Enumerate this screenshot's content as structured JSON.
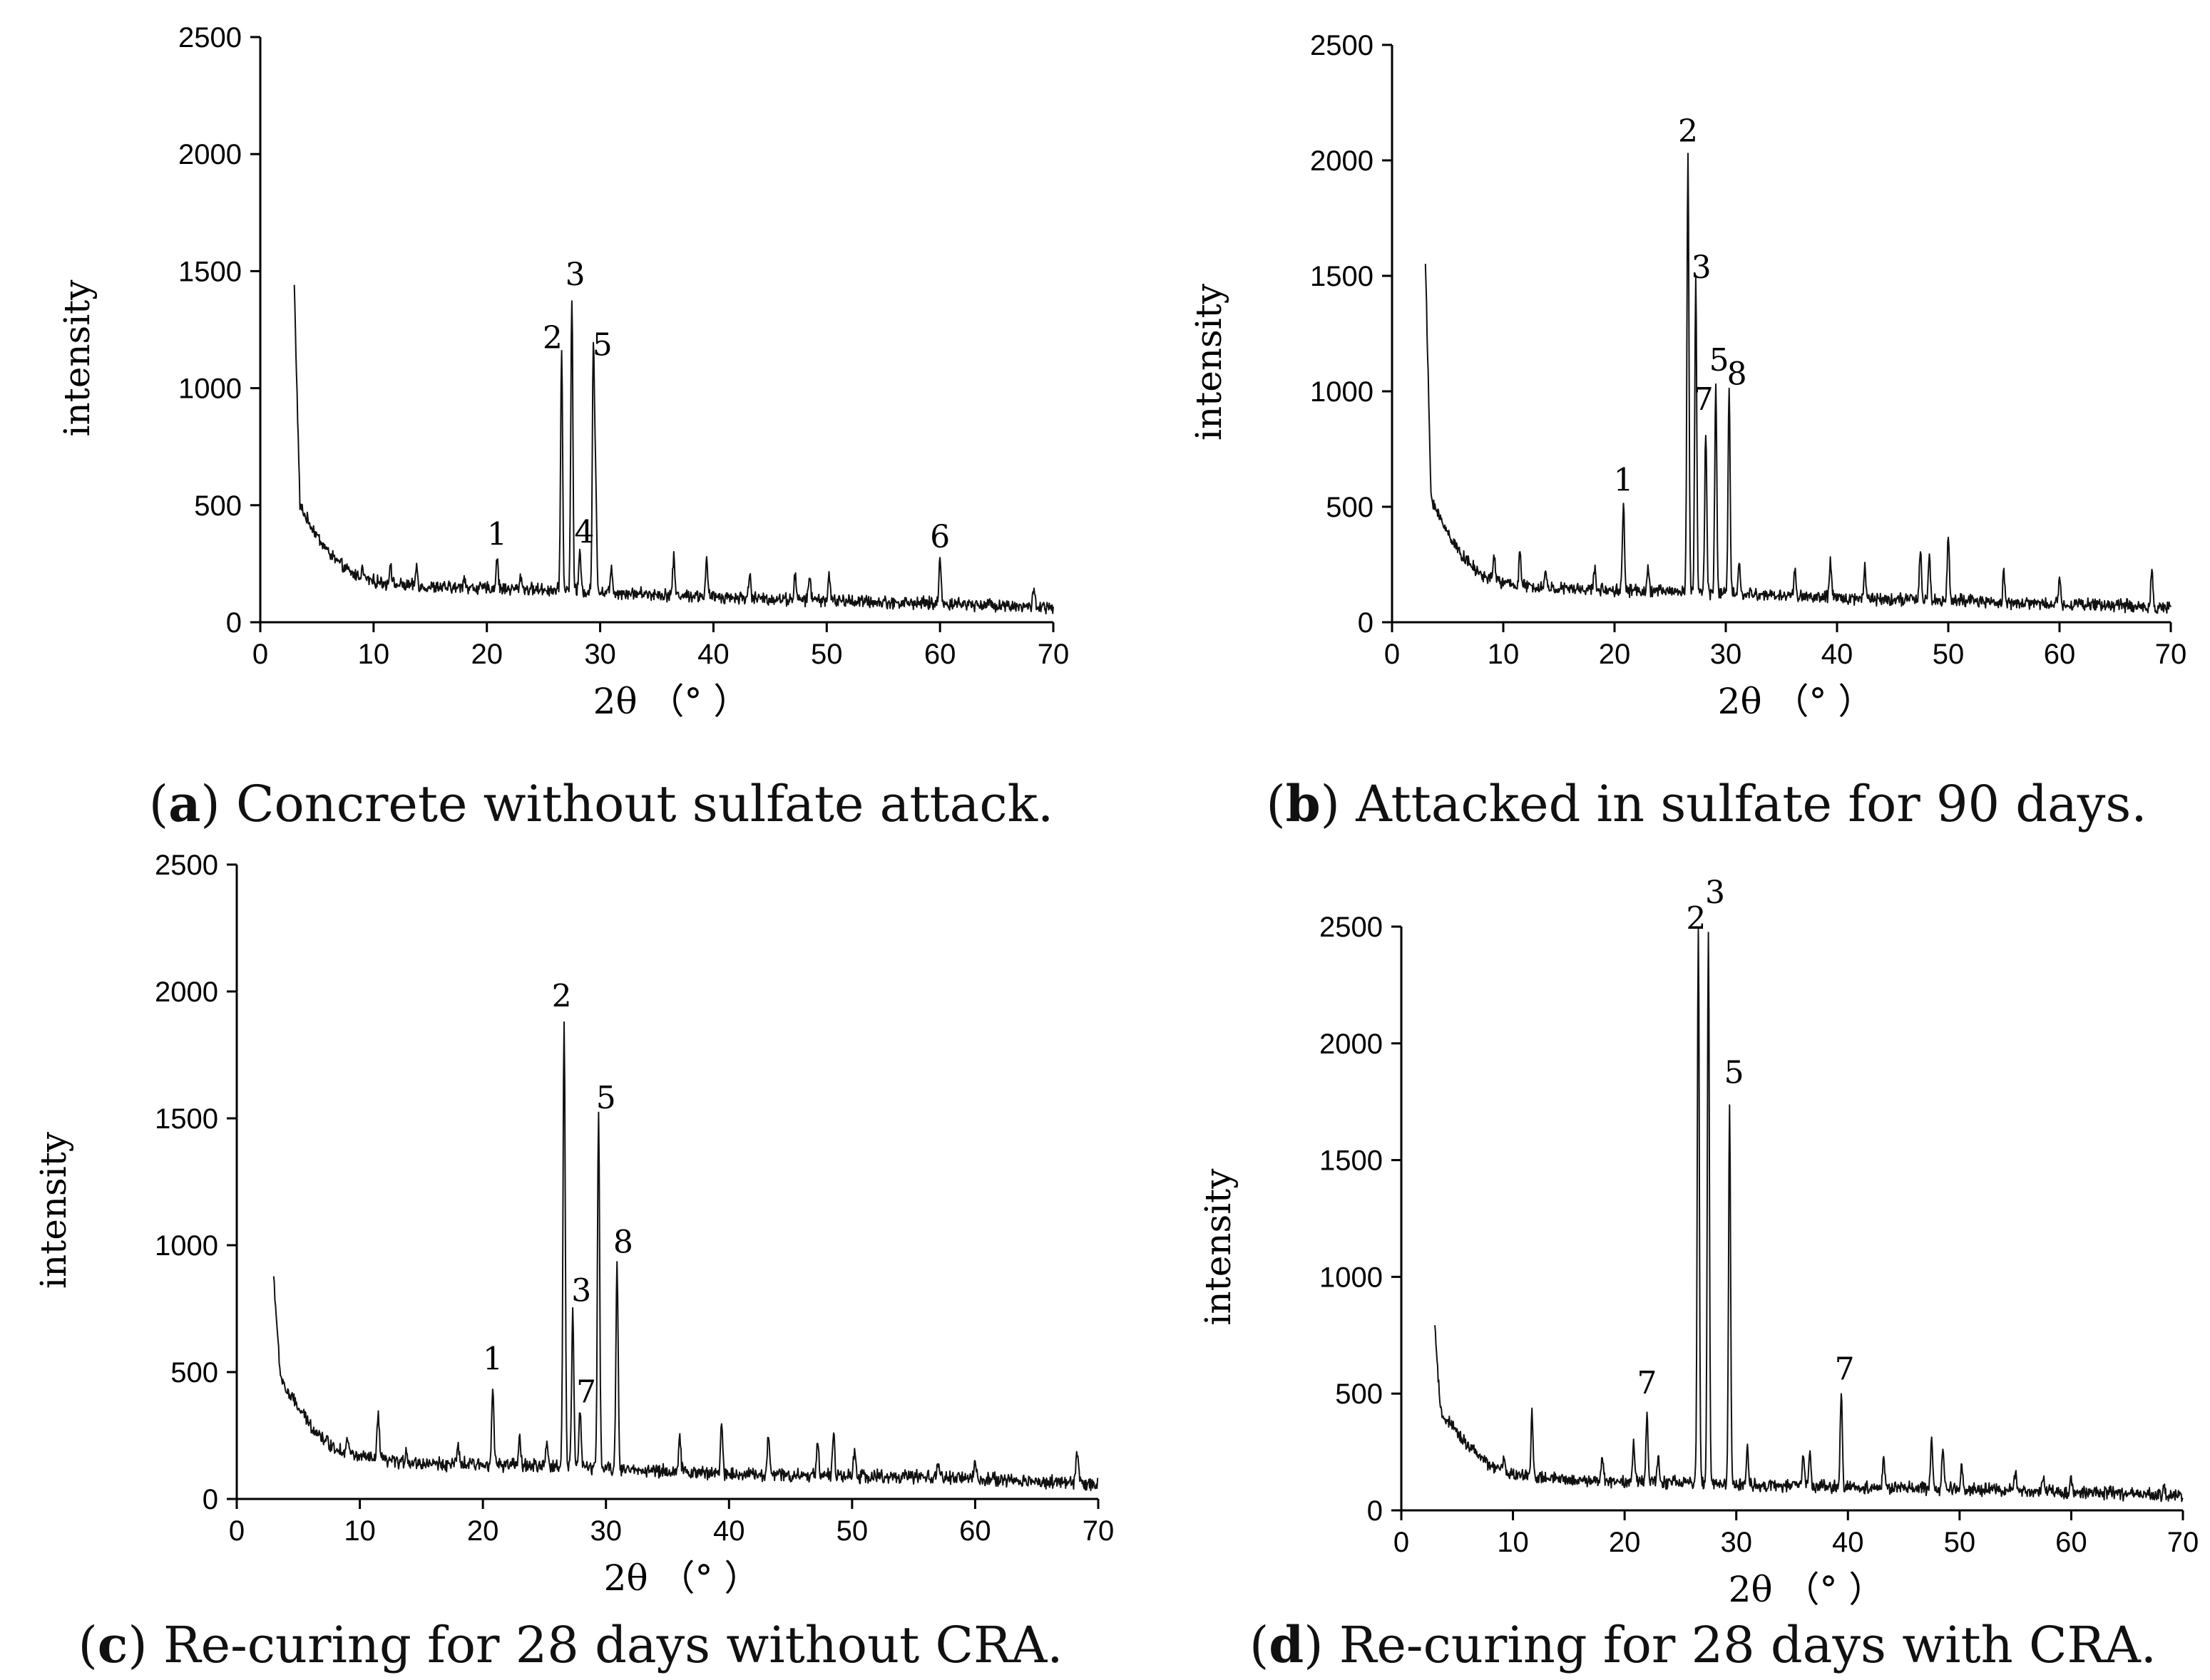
{
  "chart_data": [
    {
      "id": "a",
      "type": "line",
      "caption_letter": "a",
      "caption_text": "Concrete without sulfate attack.",
      "xlabel": "2θ （° ）",
      "ylabel": "intensity",
      "xlim": [
        0,
        70
      ],
      "ylim": [
        0,
        2500
      ],
      "xticks": [
        0,
        10,
        20,
        30,
        40,
        50,
        60,
        70
      ],
      "yticks": [
        0,
        500,
        1000,
        1500,
        2000,
        2500
      ],
      "baseline": [
        [
          3,
          1440
        ],
        [
          3.5,
          500
        ],
        [
          4,
          450
        ],
        [
          5,
          370
        ],
        [
          6,
          300
        ],
        [
          7,
          250
        ],
        [
          8,
          210
        ],
        [
          10,
          175
        ],
        [
          12,
          160
        ],
        [
          15,
          150
        ],
        [
          20,
          145
        ],
        [
          25,
          140
        ],
        [
          30,
          130
        ],
        [
          35,
          120
        ],
        [
          40,
          110
        ],
        [
          45,
          100
        ],
        [
          50,
          95
        ],
        [
          55,
          85
        ],
        [
          60,
          80
        ],
        [
          65,
          75
        ],
        [
          70,
          60
        ]
      ],
      "peaks": [
        [
          9.0,
          230
        ],
        [
          11.5,
          260
        ],
        [
          13.8,
          240
        ],
        [
          18.0,
          200
        ],
        [
          20.9,
          280
        ],
        [
          23.0,
          200
        ],
        [
          26.6,
          1160
        ],
        [
          27.5,
          1400
        ],
        [
          28.2,
          300
        ],
        [
          29.4,
          1160
        ],
        [
          29.6,
          620
        ],
        [
          31.0,
          240
        ],
        [
          36.5,
          280
        ],
        [
          39.4,
          260
        ],
        [
          43.2,
          210
        ],
        [
          47.2,
          200
        ],
        [
          48.5,
          210
        ],
        [
          50.2,
          200
        ],
        [
          60.0,
          280
        ],
        [
          68.3,
          150
        ]
      ],
      "labels": [
        {
          "text": "1",
          "x": 20.9,
          "y": 330
        },
        {
          "text": "2",
          "x": 25.8,
          "y": 1170
        },
        {
          "text": "3",
          "x": 27.8,
          "y": 1440
        },
        {
          "text": "4",
          "x": 28.6,
          "y": 340
        },
        {
          "text": "5",
          "x": 30.2,
          "y": 1140
        },
        {
          "text": "6",
          "x": 60.0,
          "y": 320
        }
      ]
    },
    {
      "id": "b",
      "type": "line",
      "caption_letter": "b",
      "caption_text": "Attacked in sulfate for 90 days.",
      "xlabel": "2θ （° ）",
      "ylabel": "intensity",
      "xlim": [
        0,
        70
      ],
      "ylim": [
        0,
        2500
      ],
      "xticks": [
        0,
        10,
        20,
        30,
        40,
        50,
        60,
        70
      ],
      "yticks": [
        0,
        500,
        1000,
        1500,
        2000,
        2500
      ],
      "baseline": [
        [
          3,
          1560
        ],
        [
          3.5,
          550
        ],
        [
          4,
          480
        ],
        [
          5,
          390
        ],
        [
          6,
          310
        ],
        [
          7,
          250
        ],
        [
          8,
          205
        ],
        [
          10,
          170
        ],
        [
          12,
          155
        ],
        [
          15,
          145
        ],
        [
          20,
          140
        ],
        [
          25,
          135
        ],
        [
          30,
          125
        ],
        [
          35,
          115
        ],
        [
          40,
          105
        ],
        [
          45,
          100
        ],
        [
          50,
          95
        ],
        [
          55,
          85
        ],
        [
          60,
          80
        ],
        [
          65,
          75
        ],
        [
          70,
          60
        ]
      ],
      "peaks": [
        [
          9.2,
          290
        ],
        [
          11.5,
          310
        ],
        [
          13.8,
          220
        ],
        [
          18.2,
          230
        ],
        [
          20.8,
          520
        ],
        [
          23.0,
          220
        ],
        [
          26.6,
          2040
        ],
        [
          27.3,
          1470
        ],
        [
          28.2,
          830
        ],
        [
          29.1,
          1030
        ],
        [
          30.3,
          1010
        ],
        [
          31.2,
          250
        ],
        [
          36.2,
          240
        ],
        [
          39.4,
          270
        ],
        [
          42.5,
          250
        ],
        [
          47.5,
          310
        ],
        [
          48.3,
          270
        ],
        [
          50.0,
          380
        ],
        [
          55.0,
          220
        ],
        [
          60.0,
          190
        ],
        [
          68.3,
          230
        ]
      ],
      "labels": [
        {
          "text": "1",
          "x": 20.8,
          "y": 570
        },
        {
          "text": "2",
          "x": 26.6,
          "y": 2080
        },
        {
          "text": "3",
          "x": 27.8,
          "y": 1490
        },
        {
          "text": "5",
          "x": 29.4,
          "y": 1090
        },
        {
          "text": "8",
          "x": 31.0,
          "y": 1030
        },
        {
          "text": "7",
          "x": 28.0,
          "y": 920
        }
      ]
    },
    {
      "id": "c",
      "type": "line",
      "caption_letter": "c",
      "caption_text": "Re-curing for 28 days without CRA.",
      "xlabel": "2θ （° ）",
      "ylabel": "intensity",
      "xlim": [
        0,
        70
      ],
      "ylim": [
        0,
        2500
      ],
      "xticks": [
        0,
        10,
        20,
        30,
        40,
        50,
        60,
        70
      ],
      "yticks": [
        0,
        500,
        1000,
        1500,
        2000,
        2500
      ],
      "baseline": [
        [
          3,
          880
        ],
        [
          3.5,
          500
        ],
        [
          4,
          430
        ],
        [
          5,
          360
        ],
        [
          6,
          290
        ],
        [
          7,
          240
        ],
        [
          8,
          200
        ],
        [
          10,
          165
        ],
        [
          12,
          150
        ],
        [
          15,
          140
        ],
        [
          20,
          135
        ],
        [
          25,
          130
        ],
        [
          30,
          120
        ],
        [
          35,
          110
        ],
        [
          40,
          100
        ],
        [
          45,
          95
        ],
        [
          50,
          90
        ],
        [
          55,
          85
        ],
        [
          60,
          80
        ],
        [
          65,
          70
        ],
        [
          70,
          60
        ]
      ],
      "peaks": [
        [
          9.0,
          240
        ],
        [
          11.5,
          340
        ],
        [
          13.8,
          190
        ],
        [
          18.0,
          200
        ],
        [
          20.8,
          460
        ],
        [
          23.0,
          240
        ],
        [
          25.2,
          220
        ],
        [
          26.6,
          1900
        ],
        [
          27.3,
          740
        ],
        [
          27.9,
          360
        ],
        [
          29.4,
          1500
        ],
        [
          30.9,
          930
        ],
        [
          36.0,
          230
        ],
        [
          39.4,
          290
        ],
        [
          43.2,
          250
        ],
        [
          47.2,
          240
        ],
        [
          48.5,
          250
        ],
        [
          50.2,
          180
        ],
        [
          57.0,
          150
        ],
        [
          60.0,
          150
        ],
        [
          68.3,
          190
        ]
      ],
      "labels": [
        {
          "text": "1",
          "x": 20.8,
          "y": 510
        },
        {
          "text": "2",
          "x": 26.4,
          "y": 1940
        },
        {
          "text": "3",
          "x": 28.0,
          "y": 780
        },
        {
          "text": "5",
          "x": 30.0,
          "y": 1540
        },
        {
          "text": "7",
          "x": 28.4,
          "y": 380
        },
        {
          "text": "8",
          "x": 31.4,
          "y": 970
        }
      ]
    },
    {
      "id": "d",
      "type": "line",
      "caption_letter": "d",
      "caption_text": "Re-curing for 28 days with CRA.",
      "xlabel": "2θ （° ）",
      "ylabel": "intensity",
      "xlim": [
        0,
        70
      ],
      "ylim": [
        0,
        2500
      ],
      "xticks": [
        0,
        10,
        20,
        30,
        40,
        50,
        60,
        70
      ],
      "yticks": [
        0,
        500,
        1000,
        1500,
        2000,
        2500
      ],
      "baseline": [
        [
          3,
          790
        ],
        [
          3.5,
          420
        ],
        [
          4,
          390
        ],
        [
          5,
          330
        ],
        [
          6,
          280
        ],
        [
          7,
          230
        ],
        [
          8,
          190
        ],
        [
          10,
          155
        ],
        [
          12,
          140
        ],
        [
          15,
          130
        ],
        [
          20,
          125
        ],
        [
          25,
          120
        ],
        [
          30,
          110
        ],
        [
          35,
          105
        ],
        [
          40,
          100
        ],
        [
          45,
          95
        ],
        [
          50,
          90
        ],
        [
          55,
          85
        ],
        [
          60,
          80
        ],
        [
          65,
          70
        ],
        [
          70,
          60
        ]
      ],
      "peaks": [
        [
          9.2,
          220
        ],
        [
          11.7,
          430
        ],
        [
          18.0,
          230
        ],
        [
          20.8,
          290
        ],
        [
          22.0,
          420
        ],
        [
          23.0,
          230
        ],
        [
          26.6,
          2480
        ],
        [
          27.5,
          2480
        ],
        [
          29.4,
          1730
        ],
        [
          31.0,
          280
        ],
        [
          36.0,
          260
        ],
        [
          36.6,
          250
        ],
        [
          39.4,
          500
        ],
        [
          43.2,
          230
        ],
        [
          47.5,
          310
        ],
        [
          48.5,
          260
        ],
        [
          50.2,
          190
        ],
        [
          55.0,
          160
        ],
        [
          57.5,
          140
        ],
        [
          60.0,
          140
        ],
        [
          68.3,
          120
        ]
      ],
      "labels": [
        {
          "text": "2",
          "x": 26.4,
          "y": 2490
        },
        {
          "text": "3",
          "x": 28.1,
          "y": 2600
        },
        {
          "text": "5",
          "x": 29.8,
          "y": 1830
        },
        {
          "text": "7",
          "x": 22.0,
          "y": 500
        },
        {
          "text": "7",
          "x": 39.7,
          "y": 560
        }
      ]
    }
  ]
}
